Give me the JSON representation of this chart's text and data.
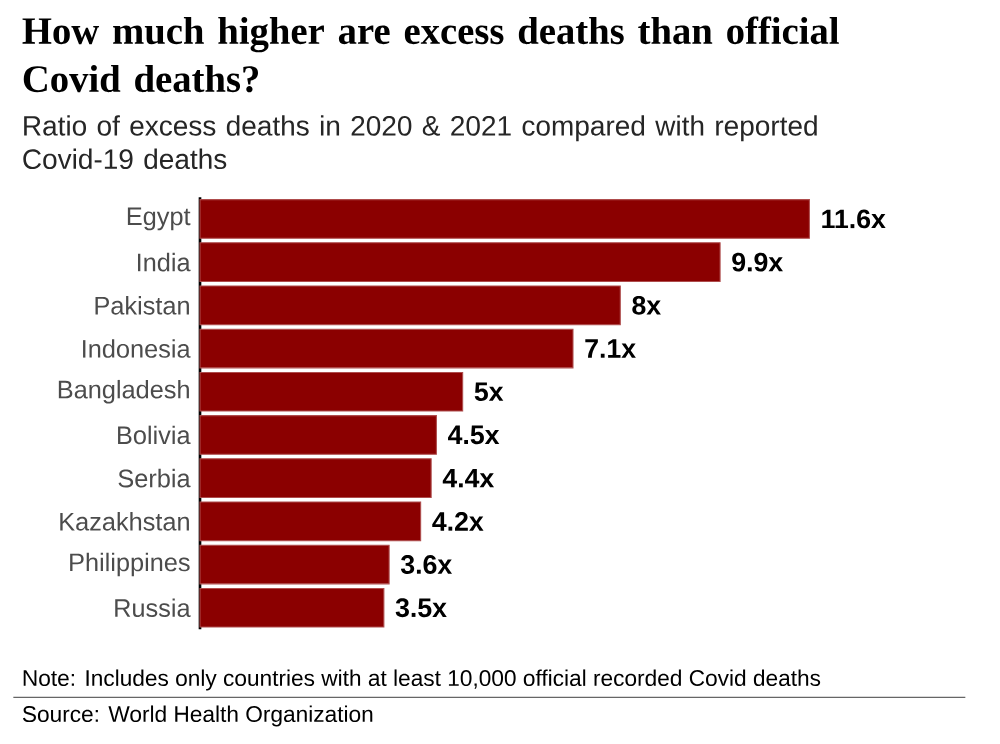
{
  "chart_data": {
    "type": "bar",
    "orientation": "horizontal",
    "title": "How much higher are excess deaths than official Covid deaths?",
    "subtitle": "Ratio of excess deaths in 2020 & 2021 compared with reported Covid-19 deaths",
    "categories": [
      "Egypt",
      "India",
      "Pakistan",
      "Indonesia",
      "Bangladesh",
      "Bolivia",
      "Serbia",
      "Kazakhstan",
      "Philippines",
      "Russia"
    ],
    "values": [
      11.6,
      9.9,
      8,
      7.1,
      5,
      4.5,
      4.4,
      4.2,
      3.6,
      3.5
    ],
    "value_labels": [
      "11.6x",
      "9.9x",
      "8x",
      "7.1x",
      "5x",
      "4.5x",
      "4.4x",
      "4.2x",
      "3.6x",
      "3.5x"
    ],
    "color": "#8b0000",
    "annotations": [
      "Note: Includes only countries with at least 10,000 official recorded Covid deaths",
      "Source: World Health Organization"
    ]
  }
}
